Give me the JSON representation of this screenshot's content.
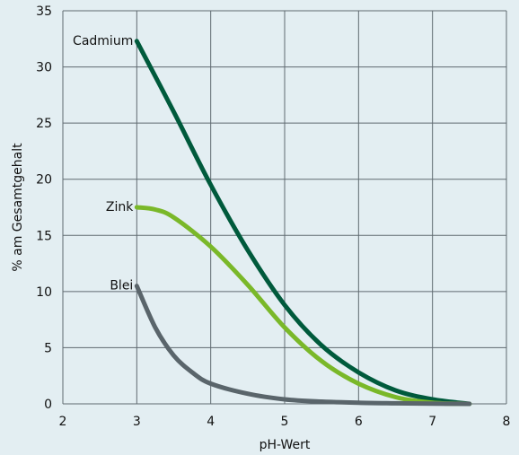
{
  "chart_data": {
    "type": "line",
    "xlabel": "pH-Wert",
    "ylabel": "% am Gesamtgehalt",
    "xlim": [
      2,
      8
    ],
    "ylim": [
      0,
      35
    ],
    "xticks": [
      2,
      3,
      4,
      5,
      6,
      7,
      8
    ],
    "yticks": [
      0,
      5,
      10,
      15,
      20,
      25,
      30,
      35
    ],
    "grid": true,
    "series": [
      {
        "name": "Cadmium",
        "color": "#005a3c",
        "x": [
          3,
          3.5,
          4,
          4.5,
          5,
          5.5,
          6,
          6.5,
          7,
          7.5
        ],
        "y": [
          32.3,
          26,
          19.5,
          13.7,
          8.8,
          5.2,
          2.8,
          1.2,
          0.4,
          0
        ]
      },
      {
        "name": "Zink",
        "color": "#7ab829",
        "x": [
          3,
          3.25,
          3.5,
          4,
          4.5,
          5,
          5.5,
          6,
          6.5,
          7,
          7.5
        ],
        "y": [
          17.5,
          17.3,
          16.6,
          14.0,
          10.6,
          6.8,
          3.8,
          1.8,
          0.6,
          0.1,
          0
        ]
      },
      {
        "name": "Blei",
        "color": "#5a656b",
        "x": [
          3,
          3.25,
          3.5,
          3.75,
          4,
          4.5,
          5,
          5.5,
          6,
          6.5,
          7,
          7.5
        ],
        "y": [
          10.5,
          6.8,
          4.3,
          2.8,
          1.8,
          0.9,
          0.4,
          0.2,
          0.1,
          0.05,
          0.02,
          0
        ]
      }
    ]
  }
}
